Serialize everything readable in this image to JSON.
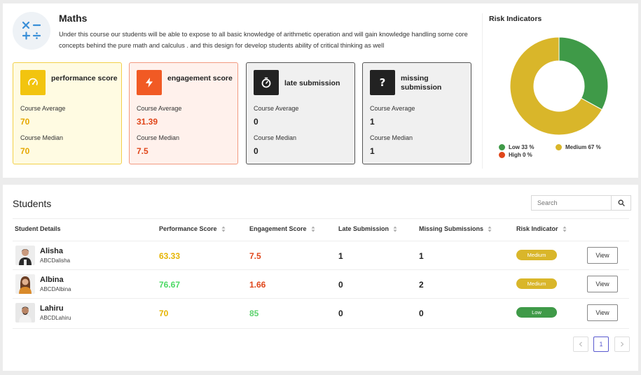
{
  "course": {
    "title": "Maths",
    "description": "Under this course our students will be able to expose to all basic knowledge of arithmetic operation and will gain knowledge handling some core concepts behind the pure math and calculus . and this design for develop students ability of critical thinking as well"
  },
  "metrics": [
    {
      "title": "performance score",
      "avg_label": "Course Average",
      "avg": "70",
      "median_label": "Course Median",
      "median": "70",
      "icon": "speedometer-icon",
      "accent": "#f2c40f",
      "bg": "#fffbe2",
      "border": "#f2d04a",
      "value_color": "#e6a800"
    },
    {
      "title": "engagement score",
      "avg_label": "Course Average",
      "avg": "31.39",
      "median_label": "Course Median",
      "median": "7.5",
      "icon": "lightning-icon",
      "accent": "#f15a24",
      "bg": "#fff1ec",
      "border": "#f29a80",
      "value_color": "#e0461a"
    },
    {
      "title": "late submission",
      "avg_label": "Course Average",
      "avg": "0",
      "median_label": "Course Median",
      "median": "0",
      "icon": "timer-icon",
      "accent": "#222222",
      "bg": "#f0f0f0",
      "border": "#555555",
      "value_color": "#222222"
    },
    {
      "title": "missing submission",
      "avg_label": "Course Average",
      "avg": "1",
      "median_label": "Course Median",
      "median": "1",
      "icon": "question-icon",
      "accent": "#222222",
      "bg": "#f0f0f0",
      "border": "#555555",
      "value_color": "#222222"
    }
  ],
  "risk": {
    "title": "Risk Indicators",
    "legend": [
      {
        "label": "Low 33 %",
        "color": "#3f9a48"
      },
      {
        "label": "Medium 67 %",
        "color": "#d9b62a"
      },
      {
        "label": "High 0 %",
        "color": "#e0461a"
      }
    ],
    "chart_data": {
      "type": "pie",
      "categories": [
        "Low",
        "Medium",
        "High"
      ],
      "values": [
        33,
        67,
        0
      ],
      "colors": [
        "#3f9a48",
        "#d9b62a",
        "#e0461a"
      ]
    }
  },
  "students": {
    "title": "Students",
    "search_placeholder": "Search",
    "columns": [
      "Student Details",
      "Performance Score",
      "Engagement Score",
      "Late Submission",
      "Missing Submissions",
      "Risk Indicator"
    ],
    "view_label": "View",
    "rows": [
      {
        "name": "Alisha",
        "id": "ABCDalisha",
        "performance": "63.33",
        "performance_color": "#e6b400",
        "engagement": "7.5",
        "engagement_color": "#e0461a",
        "late": "1",
        "missing": "1",
        "risk": "Medium",
        "risk_color": "#d9b62a"
      },
      {
        "name": "Albina",
        "id": "ABCDAlbina",
        "performance": "76.67",
        "performance_color": "#4cd964",
        "engagement": "1.66",
        "engagement_color": "#e0461a",
        "late": "0",
        "missing": "2",
        "risk": "Medium",
        "risk_color": "#d9b62a"
      },
      {
        "name": "Lahiru",
        "id": "ABCDLahiru",
        "performance": "70",
        "performance_color": "#e6b400",
        "engagement": "85",
        "engagement_color": "#5dd26e",
        "late": "0",
        "missing": "0",
        "risk": "Low",
        "risk_color": "#3f9a48"
      }
    ]
  },
  "pagination": {
    "current": "1",
    "prev_icon": "chevron-left-icon",
    "next_icon": "chevron-right-icon"
  }
}
